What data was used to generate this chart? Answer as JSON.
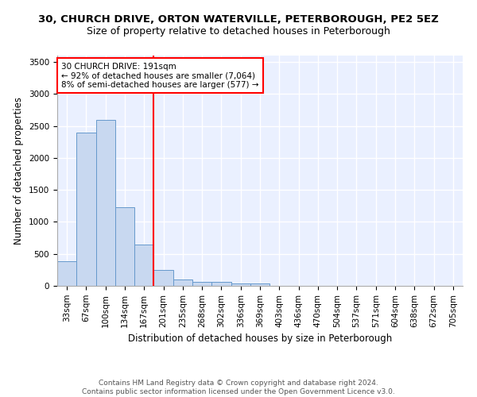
{
  "title1": "30, CHURCH DRIVE, ORTON WATERVILLE, PETERBOROUGH, PE2 5EZ",
  "title2": "Size of property relative to detached houses in Peterborough",
  "xlabel": "Distribution of detached houses by size in Peterborough",
  "ylabel": "Number of detached properties",
  "categories": [
    "33sqm",
    "67sqm",
    "100sqm",
    "134sqm",
    "167sqm",
    "201sqm",
    "235sqm",
    "268sqm",
    "302sqm",
    "336sqm",
    "369sqm",
    "403sqm",
    "436sqm",
    "470sqm",
    "504sqm",
    "537sqm",
    "571sqm",
    "604sqm",
    "638sqm",
    "672sqm",
    "705sqm"
  ],
  "values": [
    390,
    2400,
    2600,
    1230,
    640,
    250,
    105,
    65,
    60,
    35,
    35,
    0,
    0,
    0,
    0,
    0,
    0,
    0,
    0,
    0,
    0
  ],
  "bar_color": "#c8d8f0",
  "bar_edge_color": "#6699cc",
  "vline_color": "red",
  "vline_index": 4.5,
  "annotation_text": "30 CHURCH DRIVE: 191sqm\n← 92% of detached houses are smaller (7,064)\n8% of semi-detached houses are larger (577) →",
  "annotation_box_color": "white",
  "annotation_box_edge_color": "red",
  "ylim": [
    0,
    3600
  ],
  "yticks": [
    0,
    500,
    1000,
    1500,
    2000,
    2500,
    3000,
    3500
  ],
  "bg_color": "#eaf0ff",
  "grid_color": "white",
  "footer": "Contains HM Land Registry data © Crown copyright and database right 2024.\nContains public sector information licensed under the Open Government Licence v3.0.",
  "title1_fontsize": 9.5,
  "title2_fontsize": 9,
  "xlabel_fontsize": 8.5,
  "ylabel_fontsize": 8.5,
  "tick_fontsize": 7.5,
  "footer_fontsize": 6.5,
  "annot_fontsize": 7.5
}
